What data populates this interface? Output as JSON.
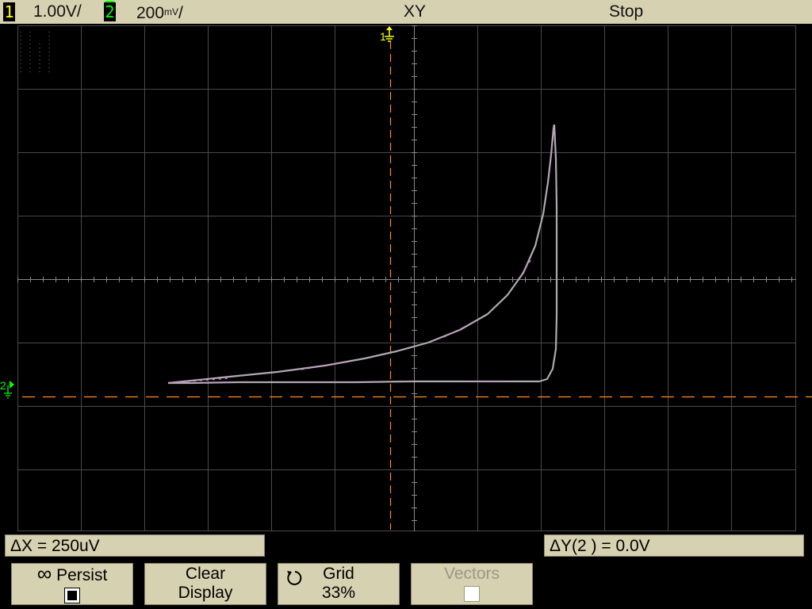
{
  "status_bar": {
    "ch1_label": "1",
    "ch1_scale": "1.00V/",
    "ch2_label": "2",
    "ch2_scale": "200",
    "ch2_unit": "mV",
    "ch2_scale_suffix": "/",
    "mode": "XY",
    "run_state": "Stop"
  },
  "markers": {
    "ch1_marker": "1",
    "ch2_marker": "2"
  },
  "measurements": {
    "delta_x": "ΔX = 250uV",
    "delta_y": "ΔY(2 ) = 0.0V"
  },
  "softkeys": [
    {
      "icon": "infinity-icon",
      "glyph": "∞",
      "label": "Persist",
      "checked": true,
      "enabled": true
    },
    {
      "line1": "Clear",
      "line2": "Display",
      "enabled": true
    },
    {
      "icon": "rotate-knob-icon",
      "label": "Grid",
      "value": "33%",
      "enabled": true
    },
    {
      "label": "Vectors",
      "checked": false,
      "enabled": false
    }
  ],
  "colors": {
    "background": "#000000",
    "bezel": "#d6d1b1",
    "trace": "#b0aab0",
    "trace_highlight": "#e080e8",
    "ch1": "#ffff00",
    "ch2": "#00ff00",
    "cursor": "#ff8c1a"
  }
}
